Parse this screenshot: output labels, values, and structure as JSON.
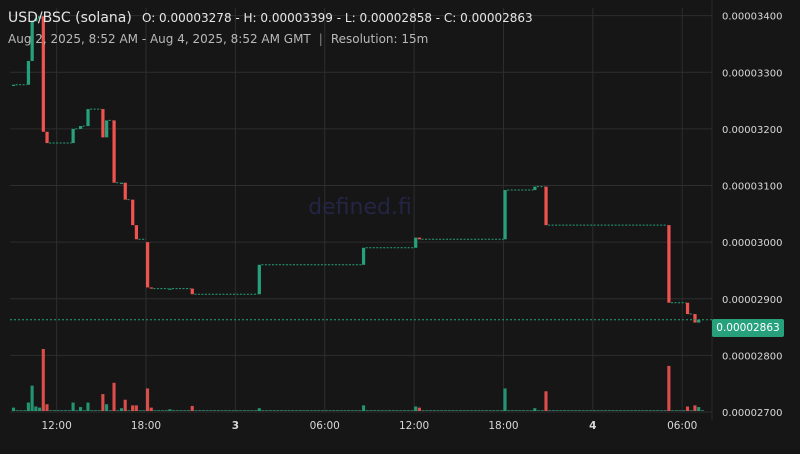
{
  "header": {
    "pair": "USD/BSC (solana)",
    "ohlc_text": "O: 0.00003278 - H: 0.00003399 - L: 0.00002858 - C: 0.00002863",
    "range_text": "Aug 2, 2025, 8:52 AM - Aug 4, 2025, 8:52 AM GMT",
    "separator": "|",
    "resolution_text": "Resolution: 15m"
  },
  "watermark": "defined.fi",
  "current_price_label": "0.00002863",
  "colors": {
    "up": "#26a17b",
    "down": "#ef5350",
    "background": "#161616",
    "grid": "#2e2e2e"
  },
  "chart_data": {
    "type": "candlestick",
    "resolution": "15m",
    "ylim": [
      2.7e-05,
      3.41e-05
    ],
    "y_ticks": [
      3.4e-05,
      3.3e-05,
      3.2e-05,
      3.1e-05,
      3e-05,
      2.9e-05,
      2.8e-05,
      2.7e-05
    ],
    "y_tick_labels": [
      "0.00003400",
      "0.00003300",
      "0.00003200",
      "0.00003100",
      "0.00003000",
      "0.00002900",
      "0.00002800",
      "0.00002700"
    ],
    "x_ticks": [
      {
        "label": "12:00",
        "t": 12.0
      },
      {
        "label": "18:00",
        "t": 18.0
      },
      {
        "label": "3",
        "t": 24.0
      },
      {
        "label": "06:00",
        "t": 30.0
      },
      {
        "label": "12:00",
        "t": 36.0
      },
      {
        "label": "18:00",
        "t": 42.0
      },
      {
        "label": "4",
        "t": 48.0
      },
      {
        "label": "06:00",
        "t": 54.0
      }
    ],
    "x_range": [
      8.87,
      56.0
    ],
    "current_price": 2.863e-05,
    "candles": [
      {
        "t": 9.0,
        "o": 3.278e-05,
        "c": 3.278e-05,
        "v": 0.6
      },
      {
        "t": 10.0,
        "o": 3.278e-05,
        "c": 3.32e-05,
        "v": 1.5
      },
      {
        "t": 10.25,
        "o": 3.32e-05,
        "c": 3.39e-05,
        "v": 4.5
      },
      {
        "t": 10.5,
        "o": 3.39e-05,
        "c": 3.395e-05,
        "v": 0.8
      },
      {
        "t": 10.75,
        "o": 3.395e-05,
        "c": 3.399e-05,
        "v": 0.6
      },
      {
        "t": 11.0,
        "o": 3.399e-05,
        "c": 3.195e-05,
        "v": 11.0
      },
      {
        "t": 11.25,
        "o": 3.195e-05,
        "c": 3.175e-05,
        "v": 1.2
      },
      {
        "t": 13.0,
        "o": 3.175e-05,
        "c": 3.2e-05,
        "v": 1.5
      },
      {
        "t": 13.5,
        "o": 3.2e-05,
        "c": 3.205e-05,
        "v": 0.7
      },
      {
        "t": 14.0,
        "o": 3.205e-05,
        "c": 3.235e-05,
        "v": 1.5
      },
      {
        "t": 15.0,
        "o": 3.235e-05,
        "c": 3.185e-05,
        "v": 3.0
      },
      {
        "t": 15.25,
        "o": 3.185e-05,
        "c": 3.215e-05,
        "v": 1.2
      },
      {
        "t": 15.75,
        "o": 3.215e-05,
        "c": 3.105e-05,
        "v": 5.0
      },
      {
        "t": 16.25,
        "o": 3.105e-05,
        "c": 3.105e-05,
        "v": 0.5
      },
      {
        "t": 16.5,
        "o": 3.105e-05,
        "c": 3.075e-05,
        "v": 2.0
      },
      {
        "t": 17.0,
        "o": 3.075e-05,
        "c": 3.03e-05,
        "v": 1.0
      },
      {
        "t": 17.25,
        "o": 3.03e-05,
        "c": 3.005e-05,
        "v": 1.0
      },
      {
        "t": 18.0,
        "o": 3e-05,
        "c": 2.92e-05,
        "v": 4.0
      },
      {
        "t": 18.25,
        "o": 2.92e-05,
        "c": 2.918e-05,
        "v": 0.6
      },
      {
        "t": 19.5,
        "o": 2.918e-05,
        "c": 2.918e-05,
        "v": 0.3
      },
      {
        "t": 21.0,
        "o": 2.918e-05,
        "c": 2.908e-05,
        "v": 0.9
      },
      {
        "t": 25.5,
        "o": 2.908e-05,
        "c": 2.96e-05,
        "v": 0.5
      },
      {
        "t": 32.5,
        "o": 2.96e-05,
        "c": 2.99e-05,
        "v": 1.0
      },
      {
        "t": 36.0,
        "o": 2.99e-05,
        "c": 3.008e-05,
        "v": 0.8
      },
      {
        "t": 36.25,
        "o": 3.008e-05,
        "c": 3.005e-05,
        "v": 0.6
      },
      {
        "t": 42.0,
        "o": 3.005e-05,
        "c": 3.092e-05,
        "v": 4.0
      },
      {
        "t": 44.0,
        "o": 3.092e-05,
        "c": 3.098e-05,
        "v": 0.5
      },
      {
        "t": 44.75,
        "o": 3.098e-05,
        "c": 3.03e-05,
        "v": 3.5
      },
      {
        "t": 53.0,
        "o": 3.03e-05,
        "c": 2.893e-05,
        "v": 8.0
      },
      {
        "t": 54.25,
        "o": 2.893e-05,
        "c": 2.873e-05,
        "v": 0.8
      },
      {
        "t": 54.75,
        "o": 2.873e-05,
        "c": 2.858e-05,
        "v": 1.0
      },
      {
        "t": 55.0,
        "o": 2.858e-05,
        "c": 2.863e-05,
        "v": 0.7
      }
    ]
  }
}
